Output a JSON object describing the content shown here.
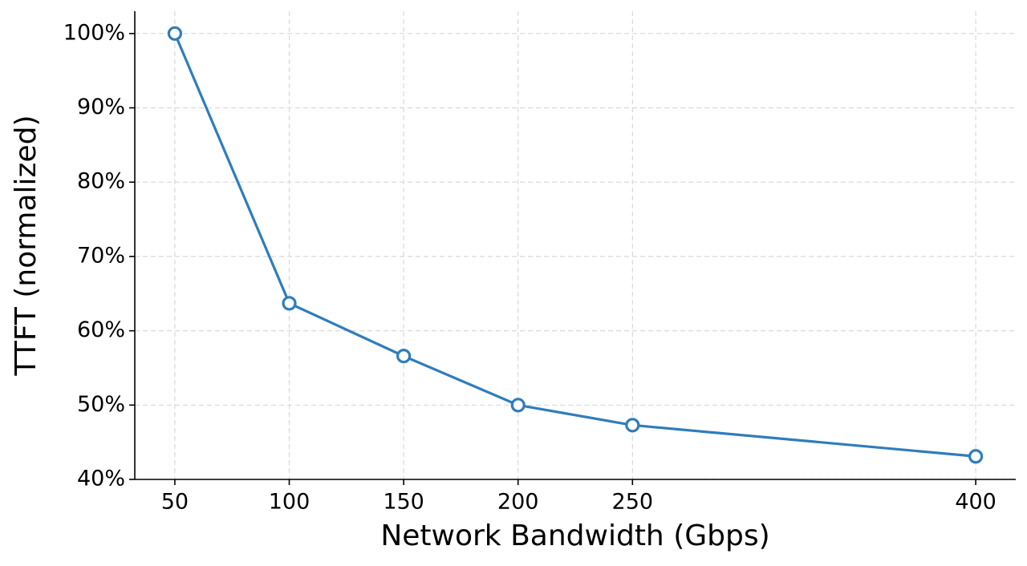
{
  "chart_data": {
    "type": "line",
    "x_label": "Network Bandwidth (Gbps)",
    "y_label": "TTFT (normalized)",
    "x": [
      50,
      100,
      150,
      200,
      250,
      400
    ],
    "series": [
      {
        "color": "#2f7dbb",
        "values": [
          100,
          63.7,
          56.6,
          50,
          47.3,
          43.1
        ]
      }
    ],
    "xlim": [
      32.5,
      417.5
    ],
    "ylim": [
      40,
      103
    ],
    "xticks": [
      50,
      100,
      150,
      200,
      250,
      400
    ],
    "yticks": [
      {
        "value": 40,
        "label": "40%"
      },
      {
        "value": 50,
        "label": "50%"
      },
      {
        "value": 60,
        "label": "60%"
      },
      {
        "value": 70,
        "label": "70%"
      },
      {
        "value": 80,
        "label": "80%"
      },
      {
        "value": 90,
        "label": "90%"
      },
      {
        "value": 100,
        "label": "100%"
      }
    ],
    "grid": true
  }
}
